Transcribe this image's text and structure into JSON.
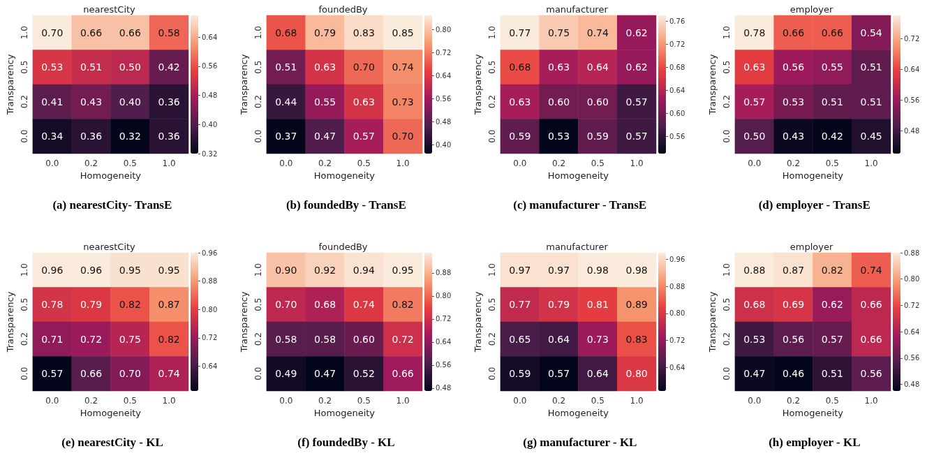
{
  "chart_data": [
    {
      "type": "heatmap",
      "title": "nearestCity",
      "xlabel": "Homogeneity",
      "ylabel": "Transparency",
      "categories": [
        "0.0",
        "0.2",
        "0.5",
        "1.0"
      ],
      "y_categories": [
        "1.0",
        "0.5",
        "0.2",
        "0.0"
      ],
      "cells": [
        [
          0.7,
          0.66,
          0.66,
          0.58
        ],
        [
          0.53,
          0.51,
          0.5,
          0.42
        ],
        [
          0.41,
          0.43,
          0.4,
          0.36
        ],
        [
          0.34,
          0.36,
          0.32,
          0.36
        ]
      ],
      "cell_labels": [
        [
          "0.70",
          "0.66",
          "0.66",
          "0.58"
        ],
        [
          "0.53",
          "0.51",
          "0.50",
          "0.42"
        ],
        [
          "0.41",
          "0.43",
          "0.40",
          "0.36"
        ],
        [
          "0.34",
          "0.36",
          "0.32",
          "0.36"
        ]
      ],
      "clim": [
        0.32,
        0.7
      ],
      "cticks": [
        0.32,
        {
          "value": 0.4,
          "label": "0.40"
        },
        0.48,
        0.56,
        0.64
      ],
      "annotations": [
        "(a) nearestCity- TransE"
      ]
    },
    {
      "type": "heatmap",
      "title": "foundedBy",
      "xlabel": "Homogeneity",
      "ylabel": "Transparency",
      "categories": [
        "0.0",
        "0.2",
        "0.5",
        "1.0"
      ],
      "y_categories": [
        "1.0",
        "0.5",
        "0.2",
        "0.0"
      ],
      "cells": [
        [
          0.68,
          0.79,
          0.83,
          0.85
        ],
        [
          0.51,
          0.63,
          0.7,
          0.74
        ],
        [
          0.44,
          0.55,
          0.63,
          0.73
        ],
        [
          0.37,
          0.47,
          0.57,
          0.7
        ]
      ],
      "cell_labels": [
        [
          "0.68",
          "0.79",
          "0.83",
          "0.85"
        ],
        [
          "0.51",
          "0.63",
          "0.70",
          "0.74"
        ],
        [
          "0.44",
          "0.55",
          "0.63",
          "0.73"
        ],
        [
          "0.37",
          "0.47",
          "0.57",
          "0.70"
        ]
      ],
      "clim": [
        0.37,
        0.85
      ],
      "cticks": [
        {
          "value": 0.4,
          "label": "0.40"
        },
        0.48,
        0.56,
        0.64,
        0.72,
        {
          "value": 0.8,
          "label": "0.80"
        }
      ],
      "annotations": [
        "(b) foundedBy - TransE"
      ]
    },
    {
      "type": "heatmap",
      "title": "manufacturer",
      "xlabel": "Homogeneity",
      "ylabel": "Transparency",
      "categories": [
        "0.0",
        "0.2",
        "0.5",
        "1.0"
      ],
      "y_categories": [
        "1.0",
        "0.5",
        "0.2",
        "0.0"
      ],
      "cells": [
        [
          0.77,
          0.75,
          0.74,
          0.62
        ],
        [
          0.68,
          0.63,
          0.64,
          0.62
        ],
        [
          0.63,
          0.6,
          0.6,
          0.57
        ],
        [
          0.59,
          0.53,
          0.59,
          0.57
        ]
      ],
      "cell_labels": [
        [
          "0.77",
          "0.75",
          "0.74",
          "0.62"
        ],
        [
          "0.68",
          "0.63",
          "0.64",
          "0.62"
        ],
        [
          "0.63",
          "0.60",
          "0.60",
          "0.57"
        ],
        [
          "0.59",
          "0.53",
          "0.59",
          "0.57"
        ]
      ],
      "clim": [
        0.53,
        0.77
      ],
      "cticks": [
        0.56,
        {
          "value": 0.6,
          "label": "0.60"
        },
        0.64,
        0.68,
        0.72,
        0.76
      ],
      "annotations": [
        "(c) manufacturer - TransE"
      ]
    },
    {
      "type": "heatmap",
      "title": "employer",
      "xlabel": "Homogeneity",
      "ylabel": "Transparency",
      "categories": [
        "0.0",
        "0.2",
        "0.5",
        "1.0"
      ],
      "y_categories": [
        "1.0",
        "0.5",
        "0.2",
        "0.0"
      ],
      "cells": [
        [
          0.78,
          0.66,
          0.66,
          0.54
        ],
        [
          0.63,
          0.56,
          0.55,
          0.51
        ],
        [
          0.57,
          0.53,
          0.51,
          0.51
        ],
        [
          0.5,
          0.43,
          0.42,
          0.45
        ]
      ],
      "cell_labels": [
        [
          "0.78",
          "0.66",
          "0.66",
          "0.54"
        ],
        [
          "0.63",
          "0.56",
          "0.55",
          "0.51"
        ],
        [
          "0.57",
          "0.53",
          "0.51",
          "0.51"
        ],
        [
          "0.50",
          "0.43",
          "0.42",
          "0.45"
        ]
      ],
      "clim": [
        0.42,
        0.78
      ],
      "cticks": [
        0.48,
        0.56,
        0.64,
        0.72
      ],
      "annotations": [
        "(d) employer - TransE"
      ]
    },
    {
      "type": "heatmap",
      "title": "nearestCity",
      "xlabel": "Homogeneity",
      "ylabel": "Transparency",
      "categories": [
        "0.0",
        "0.2",
        "0.5",
        "1.0"
      ],
      "y_categories": [
        "1.0",
        "0.5",
        "0.2",
        "0.0"
      ],
      "cells": [
        [
          0.96,
          0.96,
          0.95,
          0.95
        ],
        [
          0.78,
          0.79,
          0.82,
          0.87
        ],
        [
          0.71,
          0.72,
          0.75,
          0.82
        ],
        [
          0.57,
          0.66,
          0.7,
          0.74
        ]
      ],
      "cell_labels": [
        [
          "0.96",
          "0.96",
          "0.95",
          "0.95"
        ],
        [
          "0.78",
          "0.79",
          "0.82",
          "0.87"
        ],
        [
          "0.71",
          "0.72",
          "0.75",
          "0.82"
        ],
        [
          "0.57",
          "0.66",
          "0.70",
          "0.74"
        ]
      ],
      "clim": [
        0.57,
        0.96
      ],
      "cticks": [
        0.64,
        0.72,
        {
          "value": 0.8,
          "label": "0.80"
        },
        0.88,
        0.96
      ],
      "annotations": [
        "(e) nearestCity - KL"
      ]
    },
    {
      "type": "heatmap",
      "title": "foundedBy",
      "xlabel": "Homogeneity",
      "ylabel": "Transparency",
      "categories": [
        "0.0",
        "0.2",
        "0.5",
        "1.0"
      ],
      "y_categories": [
        "1.0",
        "0.5",
        "0.2",
        "0.0"
      ],
      "cells": [
        [
          0.9,
          0.92,
          0.94,
          0.95
        ],
        [
          0.7,
          0.68,
          0.74,
          0.82
        ],
        [
          0.58,
          0.58,
          0.6,
          0.72
        ],
        [
          0.49,
          0.47,
          0.52,
          0.66
        ]
      ],
      "cell_labels": [
        [
          "0.90",
          "0.92",
          "0.94",
          "0.95"
        ],
        [
          "0.70",
          "0.68",
          "0.74",
          "0.82"
        ],
        [
          "0.58",
          "0.58",
          "0.60",
          "0.72"
        ],
        [
          "0.49",
          "0.47",
          "0.52",
          "0.66"
        ]
      ],
      "clim": [
        0.47,
        0.95
      ],
      "cticks": [
        0.48,
        0.56,
        0.64,
        0.72,
        {
          "value": 0.8,
          "label": "0.80"
        },
        0.88
      ],
      "annotations": [
        "(f) foundedBy - KL"
      ]
    },
    {
      "type": "heatmap",
      "title": "manufacturer",
      "xlabel": "Homogeneity",
      "ylabel": "Transparency",
      "categories": [
        "0.0",
        "0.2",
        "0.5",
        "1.0"
      ],
      "y_categories": [
        "1.0",
        "0.5",
        "0.2",
        "0.0"
      ],
      "cells": [
        [
          0.97,
          0.97,
          0.98,
          0.98
        ],
        [
          0.77,
          0.79,
          0.81,
          0.89
        ],
        [
          0.65,
          0.64,
          0.73,
          0.83
        ],
        [
          0.59,
          0.57,
          0.64,
          0.8
        ]
      ],
      "cell_labels": [
        [
          "0.97",
          "0.97",
          "0.98",
          "0.98"
        ],
        [
          "0.77",
          "0.79",
          "0.81",
          "0.89"
        ],
        [
          "0.65",
          "0.64",
          "0.73",
          "0.83"
        ],
        [
          "0.59",
          "0.57",
          "0.64",
          "0.80"
        ]
      ],
      "clim": [
        0.57,
        0.98
      ],
      "cticks": [
        0.64,
        0.72,
        {
          "value": 0.8,
          "label": "0.80"
        },
        0.88,
        0.96
      ],
      "annotations": [
        "(g) manufacturer - KL"
      ]
    },
    {
      "type": "heatmap",
      "title": "employer",
      "xlabel": "Homogeneity",
      "ylabel": "Transparency",
      "categories": [
        "0.0",
        "0.2",
        "0.5",
        "1.0"
      ],
      "y_categories": [
        "1.0",
        "0.5",
        "0.2",
        "0.0"
      ],
      "cells": [
        [
          0.88,
          0.87,
          0.82,
          0.74
        ],
        [
          0.68,
          0.69,
          0.62,
          0.66
        ],
        [
          0.53,
          0.56,
          0.57,
          0.66
        ],
        [
          0.47,
          0.46,
          0.51,
          0.56
        ]
      ],
      "cell_labels": [
        [
          "0.88",
          "0.87",
          "0.82",
          "0.74"
        ],
        [
          "0.68",
          "0.69",
          "0.62",
          "0.66"
        ],
        [
          "0.53",
          "0.56",
          "0.57",
          "0.66"
        ],
        [
          "0.47",
          "0.46",
          "0.51",
          "0.56"
        ]
      ],
      "clim": [
        0.46,
        0.88
      ],
      "cticks": [
        0.48,
        0.56,
        0.64,
        0.72,
        {
          "value": 0.8,
          "label": "0.80"
        },
        0.88
      ],
      "annotations": [
        "(h) employer - KL"
      ]
    }
  ]
}
